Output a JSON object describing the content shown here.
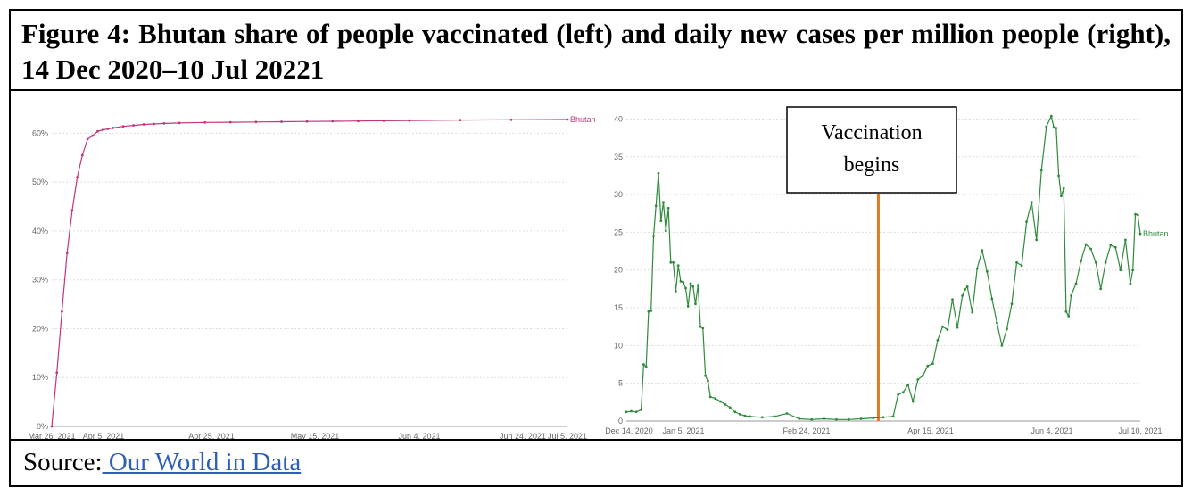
{
  "figure": {
    "title": "Figure 4: Bhutan share of people vaccinated (left) and daily new cases per million people (right), 14 Dec 2020–10 Jul 20221",
    "source_label": "Source:",
    "source_link": " Our World in Data"
  },
  "chart_data": [
    {
      "type": "line",
      "title": "",
      "xlabel": "",
      "ylabel": "",
      "x_ticks": [
        "Mar 26, 2021",
        "Apr 5, 2021",
        "Apr 25, 2021",
        "May 15, 2021",
        "Jun 4, 2021",
        "Jun 24, 2021",
        "Jul 5, 2021"
      ],
      "y_ticks": [
        "0%",
        "10%",
        "20%",
        "30%",
        "40%",
        "50%",
        "60%"
      ],
      "ylim": [
        0,
        65
      ],
      "xlim": [
        0,
        101
      ],
      "grid": true,
      "color": "#c2357b",
      "series": [
        {
          "name": "Bhutan",
          "x": [
            0,
            1,
            2,
            3,
            4,
            5,
            6,
            7,
            8,
            9,
            10,
            11,
            12,
            14,
            16,
            18,
            20,
            22,
            25,
            30,
            35,
            40,
            45,
            50,
            55,
            60,
            65,
            70,
            80,
            90,
            101
          ],
          "values": [
            0,
            11,
            23.5,
            35.5,
            44.2,
            51,
            55.5,
            58.8,
            59.5,
            60.4,
            60.7,
            60.9,
            61.1,
            61.4,
            61.6,
            61.8,
            61.9,
            62.0,
            62.1,
            62.2,
            62.25,
            62.3,
            62.35,
            62.4,
            62.45,
            62.5,
            62.55,
            62.6,
            62.7,
            62.75,
            62.8
          ]
        }
      ]
    },
    {
      "type": "line",
      "title": "",
      "xlabel": "",
      "ylabel": "",
      "x_ticks": [
        "Dec 14, 2020",
        "Jan 5, 2021",
        "Feb 24, 2021",
        "Apr 15, 2021",
        "Jun 4, 2021",
        "Jul 10, 2021"
      ],
      "y_ticks": [
        "0",
        "5",
        "10",
        "15",
        "20",
        "25",
        "30",
        "35",
        "40"
      ],
      "ylim": [
        0,
        41
      ],
      "xlim": [
        0,
        208
      ],
      "grid": true,
      "color": "#2e8b3a",
      "annotation": {
        "label_line1": "Vaccination",
        "label_line2": "begins",
        "x": 102,
        "color": "#e07b22"
      },
      "series": [
        {
          "name": "Bhutan",
          "x": [
            0,
            2,
            4,
            6,
            7,
            8,
            9,
            10,
            11,
            12,
            13,
            14,
            15,
            16,
            17,
            18,
            19,
            20,
            21,
            22,
            23,
            24,
            25,
            26,
            27,
            28,
            29,
            30,
            31,
            32,
            33,
            34,
            36,
            38,
            40,
            42,
            44,
            46,
            48,
            50,
            55,
            60,
            65,
            70,
            75,
            80,
            85,
            90,
            95,
            100,
            104,
            108,
            110,
            112,
            114,
            116,
            118,
            120,
            122,
            124,
            126,
            128,
            130,
            132,
            134,
            136,
            137,
            138,
            140,
            142,
            144,
            146,
            148,
            150,
            152,
            154,
            156,
            158,
            160,
            162,
            164,
            166,
            168,
            170,
            172,
            173,
            174,
            175,
            176,
            177,
            178,
            179,
            180,
            182,
            184,
            186,
            188,
            190,
            192,
            194,
            196,
            198,
            200,
            202,
            204,
            205,
            206,
            207,
            208
          ],
          "values": [
            1.2,
            1.3,
            1.2,
            1.5,
            7.5,
            7.2,
            14.5,
            14.6,
            24.5,
            28.5,
            32.8,
            26.5,
            29,
            25.2,
            28.2,
            21,
            21,
            17.2,
            20.6,
            18.5,
            18.4,
            17.6,
            15.2,
            18.2,
            17.8,
            15.5,
            18,
            12.5,
            12.3,
            6,
            5.3,
            3.2,
            3,
            2.6,
            2.2,
            1.8,
            1.2,
            0.9,
            0.7,
            0.6,
            0.5,
            0.6,
            1,
            0.3,
            0.2,
            0.3,
            0.2,
            0.2,
            0.3,
            0.4,
            0.5,
            0.6,
            3.5,
            3.8,
            4.8,
            2.6,
            5.5,
            6,
            7.3,
            7.6,
            10.7,
            12.5,
            12.1,
            16.1,
            12.4,
            16.6,
            17.4,
            17.8,
            14.4,
            20.2,
            22.6,
            19.8,
            16.2,
            13,
            10,
            12.2,
            15.5,
            21,
            20.6,
            26.4,
            29,
            24,
            33.2,
            39,
            40.4,
            38.9,
            38.8,
            32.5,
            29.8,
            30.8,
            14.5,
            13.9,
            16.6,
            18.2,
            21.2,
            23.4,
            22.8,
            21,
            17.5,
            21,
            23.3,
            23,
            20,
            24,
            18.2,
            20,
            27.4,
            27.3,
            24.8
          ]
        }
      ]
    }
  ]
}
